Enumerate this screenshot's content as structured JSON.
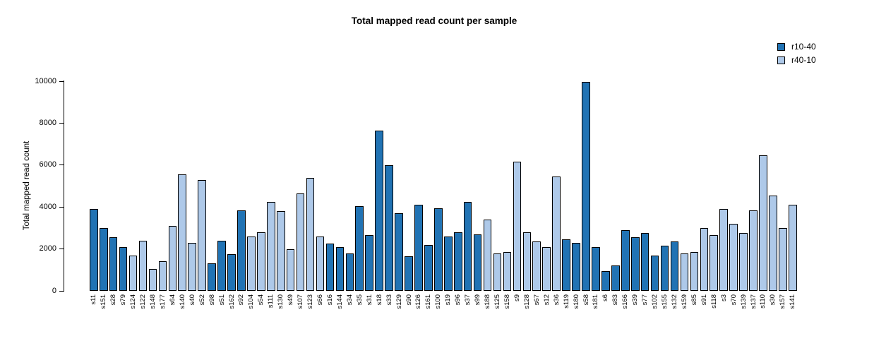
{
  "title": "Total mapped read count per sample",
  "legend": [
    {
      "label": "r10-40",
      "color": "#2173b4"
    },
    {
      "label": "r40-10",
      "color": "#aec9e9"
    }
  ],
  "chart_data": {
    "type": "bar",
    "title": "Total mapped read count per sample",
    "xlabel": "",
    "ylabel": "Total mapped read count",
    "ylim": [
      0,
      10000
    ],
    "yticks": [
      0,
      2000,
      4000,
      6000,
      8000,
      10000
    ],
    "grid": false,
    "legend_position": "top-right",
    "series_colors": {
      "r10-40": "#2173b4",
      "r40-10": "#aec9e9"
    },
    "bars": [
      {
        "label": "s11",
        "value": 3900,
        "series": "r10-40"
      },
      {
        "label": "s151",
        "value": 3000,
        "series": "r10-40"
      },
      {
        "label": "s28",
        "value": 2550,
        "series": "r10-40"
      },
      {
        "label": "s79",
        "value": 2100,
        "series": "r10-40"
      },
      {
        "label": "s124",
        "value": 1700,
        "series": "r40-10"
      },
      {
        "label": "s122",
        "value": 2400,
        "series": "r40-10"
      },
      {
        "label": "s148",
        "value": 1050,
        "series": "r40-10"
      },
      {
        "label": "s177",
        "value": 1400,
        "series": "r40-10"
      },
      {
        "label": "s64",
        "value": 3100,
        "series": "r40-10"
      },
      {
        "label": "s140",
        "value": 5550,
        "series": "r40-10"
      },
      {
        "label": "s40",
        "value": 2300,
        "series": "r40-10"
      },
      {
        "label": "s52",
        "value": 5300,
        "series": "r40-10"
      },
      {
        "label": "s98",
        "value": 1300,
        "series": "r10-40"
      },
      {
        "label": "s51",
        "value": 2400,
        "series": "r10-40"
      },
      {
        "label": "s162",
        "value": 1750,
        "series": "r10-40"
      },
      {
        "label": "s92",
        "value": 3850,
        "series": "r10-40"
      },
      {
        "label": "s104",
        "value": 2600,
        "series": "r40-10"
      },
      {
        "label": "s54",
        "value": 2800,
        "series": "r40-10"
      },
      {
        "label": "s111",
        "value": 4250,
        "series": "r40-10"
      },
      {
        "label": "s130",
        "value": 3800,
        "series": "r40-10"
      },
      {
        "label": "s49",
        "value": 2000,
        "series": "r40-10"
      },
      {
        "label": "s107",
        "value": 4650,
        "series": "r40-10"
      },
      {
        "label": "s123",
        "value": 5400,
        "series": "r40-10"
      },
      {
        "label": "s66",
        "value": 2600,
        "series": "r40-10"
      },
      {
        "label": "s16",
        "value": 2250,
        "series": "r10-40"
      },
      {
        "label": "s144",
        "value": 2100,
        "series": "r10-40"
      },
      {
        "label": "s34",
        "value": 1800,
        "series": "r10-40"
      },
      {
        "label": "s35",
        "value": 4050,
        "series": "r10-40"
      },
      {
        "label": "s31",
        "value": 2650,
        "series": "r10-40"
      },
      {
        "label": "s18",
        "value": 7650,
        "series": "r10-40"
      },
      {
        "label": "s33",
        "value": 6000,
        "series": "r10-40"
      },
      {
        "label": "s129",
        "value": 3700,
        "series": "r10-40"
      },
      {
        "label": "s90",
        "value": 1650,
        "series": "r10-40"
      },
      {
        "label": "s126",
        "value": 4100,
        "series": "r10-40"
      },
      {
        "label": "s161",
        "value": 2200,
        "series": "r10-40"
      },
      {
        "label": "s100",
        "value": 3950,
        "series": "r10-40"
      },
      {
        "label": "s19",
        "value": 2600,
        "series": "r10-40"
      },
      {
        "label": "s96",
        "value": 2800,
        "series": "r10-40"
      },
      {
        "label": "s37",
        "value": 4250,
        "series": "r10-40"
      },
      {
        "label": "s99",
        "value": 2700,
        "series": "r10-40"
      },
      {
        "label": "s188",
        "value": 3400,
        "series": "r40-10"
      },
      {
        "label": "s125",
        "value": 1800,
        "series": "r40-10"
      },
      {
        "label": "s158",
        "value": 1850,
        "series": "r40-10"
      },
      {
        "label": "s9",
        "value": 6150,
        "series": "r40-10"
      },
      {
        "label": "s128",
        "value": 2800,
        "series": "r40-10"
      },
      {
        "label": "s67",
        "value": 2350,
        "series": "r40-10"
      },
      {
        "label": "s12",
        "value": 2100,
        "series": "r40-10"
      },
      {
        "label": "s36",
        "value": 5450,
        "series": "r40-10"
      },
      {
        "label": "s119",
        "value": 2450,
        "series": "r10-40"
      },
      {
        "label": "s180",
        "value": 2300,
        "series": "r10-40"
      },
      {
        "label": "s58",
        "value": 9950,
        "series": "r10-40"
      },
      {
        "label": "s181",
        "value": 2100,
        "series": "r10-40"
      },
      {
        "label": "s6",
        "value": 950,
        "series": "r10-40"
      },
      {
        "label": "s83",
        "value": 1200,
        "series": "r10-40"
      },
      {
        "label": "s166",
        "value": 2900,
        "series": "r10-40"
      },
      {
        "label": "s39",
        "value": 2550,
        "series": "r10-40"
      },
      {
        "label": "s77",
        "value": 2750,
        "series": "r10-40"
      },
      {
        "label": "s102",
        "value": 1700,
        "series": "r10-40"
      },
      {
        "label": "s155",
        "value": 2150,
        "series": "r10-40"
      },
      {
        "label": "s132",
        "value": 2350,
        "series": "r10-40"
      },
      {
        "label": "s159",
        "value": 1800,
        "series": "r40-10"
      },
      {
        "label": "s85",
        "value": 1850,
        "series": "r40-10"
      },
      {
        "label": "s91",
        "value": 3000,
        "series": "r40-10"
      },
      {
        "label": "s118",
        "value": 2650,
        "series": "r40-10"
      },
      {
        "label": "s3",
        "value": 3900,
        "series": "r40-10"
      },
      {
        "label": "s70",
        "value": 3200,
        "series": "r40-10"
      },
      {
        "label": "s139",
        "value": 2750,
        "series": "r40-10"
      },
      {
        "label": "s137",
        "value": 3850,
        "series": "r40-10"
      },
      {
        "label": "s110",
        "value": 6450,
        "series": "r40-10"
      },
      {
        "label": "s30",
        "value": 4550,
        "series": "r40-10"
      },
      {
        "label": "s157",
        "value": 3000,
        "series": "r40-10"
      },
      {
        "label": "s141",
        "value": 4100,
        "series": "r40-10"
      }
    ]
  }
}
